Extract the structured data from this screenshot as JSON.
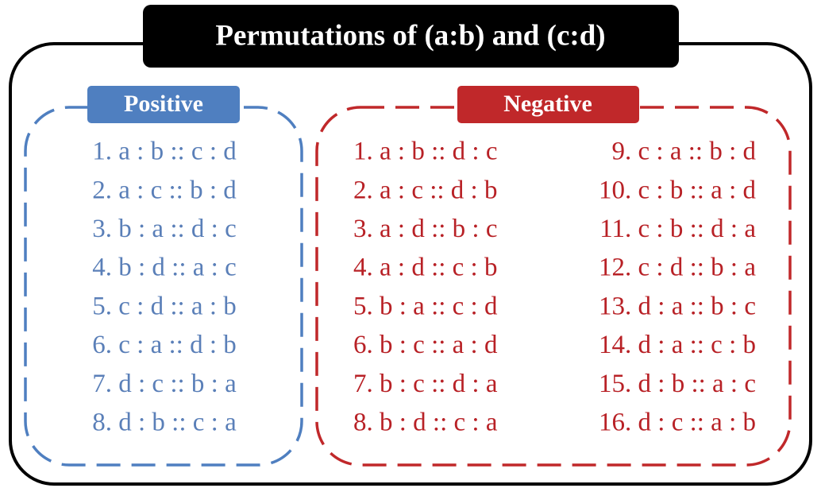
{
  "title": "Permutations of  (a:b) and (c:d)",
  "positive": {
    "label": "Positive",
    "items": [
      "1. a : b :: c : d",
      "2. a : c :: b : d",
      "3. b : a :: d : c",
      "4. b : d :: a : c",
      "5. c : d :: a : b",
      "6. c : a :: d : b",
      "7. d : c :: b : a",
      "8. d : b :: c : a"
    ]
  },
  "negative": {
    "label": "Negative",
    "items": [
      "1. a : b :: d : c",
      "2. a : c :: d : b",
      "3. a : d :: b : c",
      "4. a : d :: c : b",
      "5. b : a :: c : d",
      "6. b : c :: a : d",
      "7. b : c :: d : a",
      "8. b : d :: c : a",
      "9. c : a :: b : d",
      "10. c : b :: a : d",
      "11. c : b :: d : a",
      "12. c : d :: b : a",
      "13. d : a :: b : c",
      "14. d : a :: c : b",
      "15. d : b :: a : c",
      "16. d : c :: a : b"
    ]
  }
}
